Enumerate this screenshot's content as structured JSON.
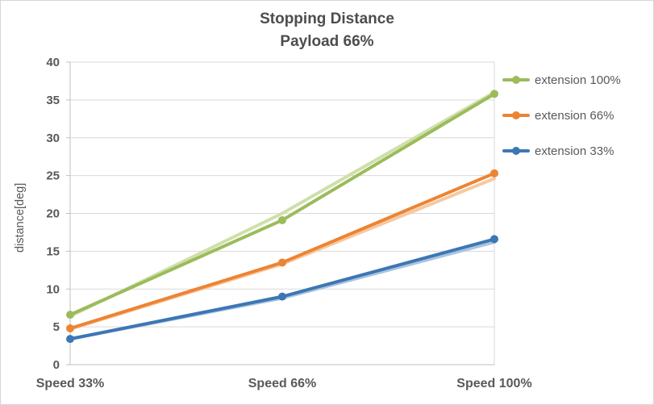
{
  "title": {
    "line1": "Stopping Distance",
    "line2": "Payload 66%"
  },
  "chart_data": {
    "type": "line",
    "categories": [
      "Speed 33%",
      "Speed 66%",
      "Speed 100%"
    ],
    "series": [
      {
        "name": "extension 100%",
        "color": "#9cbb5b",
        "light": "#cfdfaa",
        "values": [
          6.6,
          19.1,
          35.8
        ],
        "shadow_values": [
          6.4,
          20.0,
          36.0
        ]
      },
      {
        "name": "extension 66%",
        "color": "#ed8433",
        "light": "#f6c9a2",
        "values": [
          4.8,
          13.5,
          25.3
        ],
        "shadow_values": [
          4.7,
          13.3,
          24.6
        ]
      },
      {
        "name": "extension 33%",
        "color": "#3d76b4",
        "light": "#a9c4e0",
        "values": [
          3.4,
          9.0,
          16.6
        ],
        "shadow_values": [
          3.4,
          8.8,
          16.2
        ]
      }
    ],
    "xlabel": "",
    "ylabel": "distance[deg]",
    "ylim": [
      0,
      40
    ],
    "ytick_step": 5,
    "grid": true,
    "legend_position": "right"
  },
  "colors": {
    "text": "#595959",
    "grid": "#d9d9d9",
    "axis": "#bfbfbf",
    "background": "#ffffff",
    "border": "#d6d6d6"
  }
}
